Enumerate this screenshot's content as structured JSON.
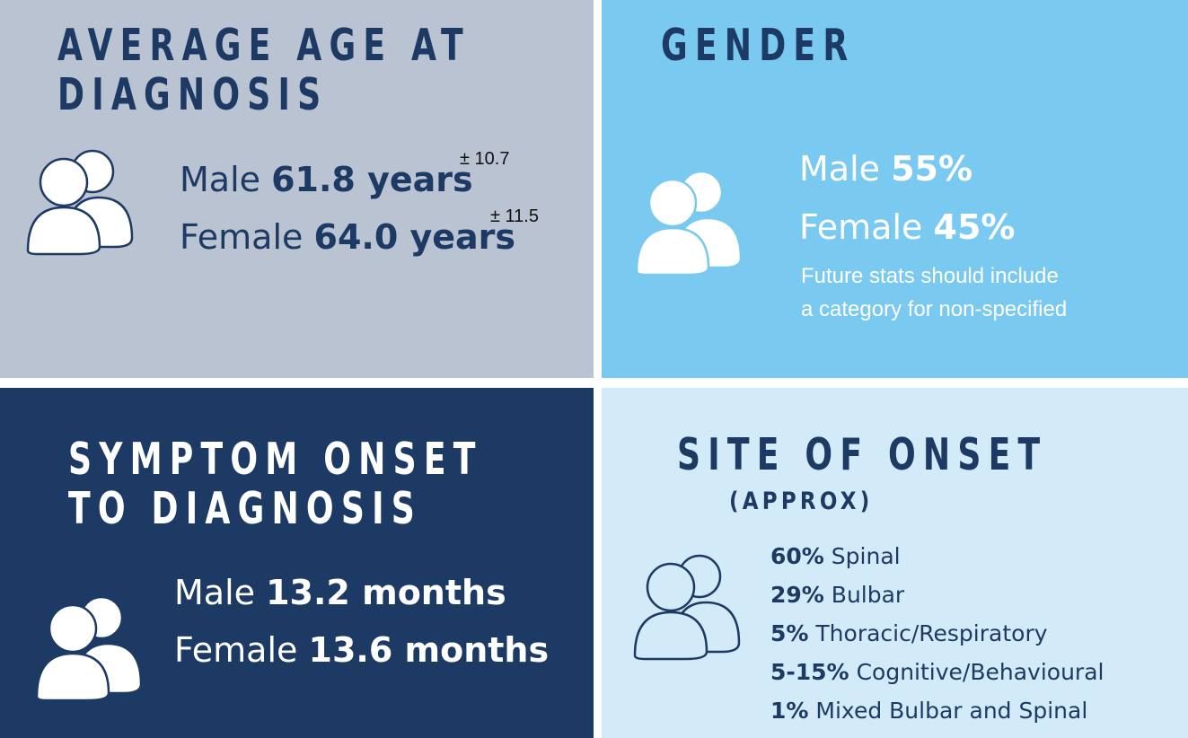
{
  "age_panel": {
    "title_line1": "AVERAGE AGE AT",
    "title_line2": "DIAGNOSIS",
    "icon": "people-icon",
    "male_label": "Male",
    "male_value": "61.8 years",
    "male_sd": "± 10.7",
    "female_label": "Female",
    "female_value": "64.0 years",
    "female_sd": "± 11.5"
  },
  "gender_panel": {
    "title": "GENDER",
    "icon": "people-icon",
    "male_label": "Male",
    "male_value": "55%",
    "female_label": "Female",
    "female_value": "45%",
    "note_line1": "Future stats should include",
    "note_line2": "a category for non-specified"
  },
  "onset_panel": {
    "title_line1": "SYMPTOM ONSET",
    "title_line2": "TO DIAGNOSIS",
    "icon": "people-icon",
    "male_label": "Male",
    "male_value": "13.2 months",
    "female_label": "Female",
    "female_value": "13.6 months"
  },
  "site_panel": {
    "title": "SITE OF ONSET",
    "subtitle": "(APPROX)",
    "icon": "people-icon",
    "items": [
      {
        "value": "60%",
        "label": "Spinal"
      },
      {
        "value": "29%",
        "label": "Bulbar"
      },
      {
        "value": "5%",
        "label": "Thoracic/Respiratory"
      },
      {
        "value": "5-15%",
        "label": "Cognitive/Behavioural"
      },
      {
        "value": "1%",
        "label": "Mixed Bulbar and Spinal"
      }
    ]
  },
  "colors": {
    "navy": "#1c3a63",
    "grey_blue": "#b9c3d2",
    "sky": "#79c9f0",
    "pale": "#d3ebf8"
  }
}
